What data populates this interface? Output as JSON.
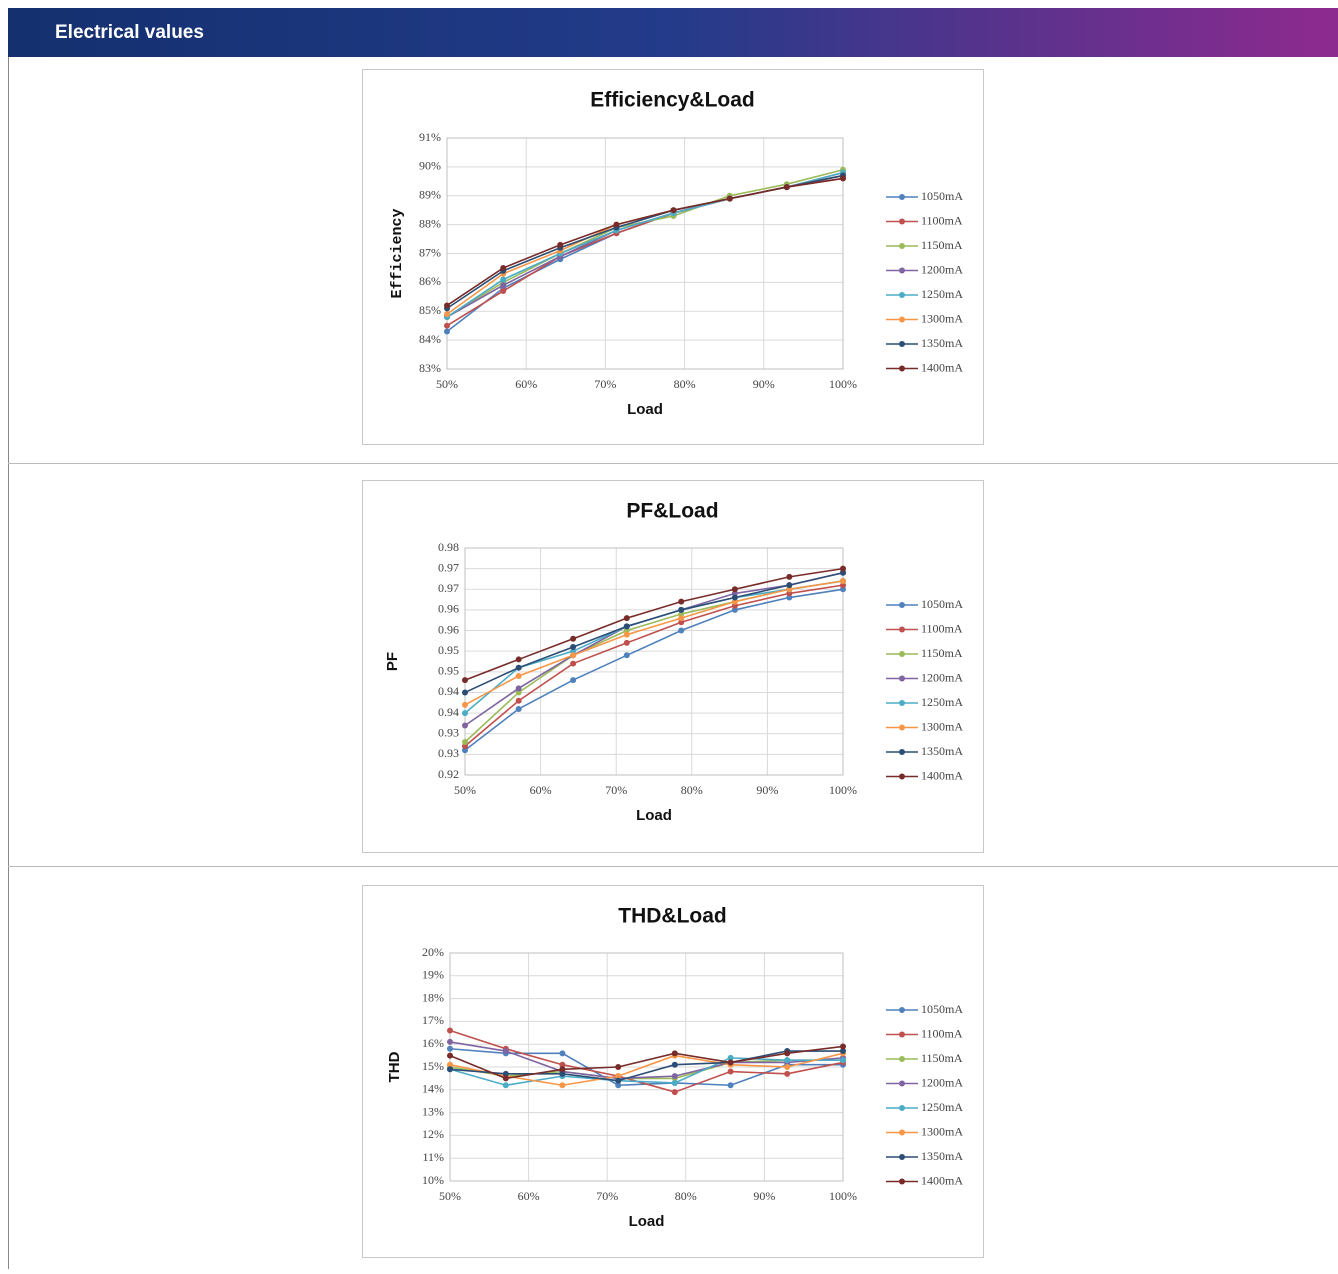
{
  "header": {
    "title": "Electrical values"
  },
  "chart_data": [
    {
      "type": "line",
      "title": "Efficiency&Load",
      "x_label": "Load",
      "y_label": "Efficiency",
      "grid": true,
      "x": [
        50,
        57.1,
        64.3,
        71.4,
        78.6,
        85.7,
        92.9,
        100
      ],
      "xlim": [
        50,
        100
      ],
      "xticks": [
        {
          "value": 50,
          "label": "50%"
        },
        {
          "value": 60,
          "label": "60%"
        },
        {
          "value": 70,
          "label": "70%"
        },
        {
          "value": 80,
          "label": "80%"
        },
        {
          "value": 90,
          "label": "90%"
        },
        {
          "value": 100,
          "label": "100%"
        }
      ],
      "ylim": [
        83,
        91
      ],
      "yticks": [
        {
          "value": 83,
          "label": "83%"
        },
        {
          "value": 84,
          "label": "84%"
        },
        {
          "value": 85,
          "label": "85%"
        },
        {
          "value": 86,
          "label": "86%"
        },
        {
          "value": 87,
          "label": "87%"
        },
        {
          "value": 88,
          "label": "88%"
        },
        {
          "value": 89,
          "label": "89%"
        },
        {
          "value": 90,
          "label": "90%"
        },
        {
          "value": 91,
          "label": "91%"
        }
      ],
      "series": [
        {
          "name": "1050mA",
          "color": "#4f81bd",
          "values": [
            84.3,
            85.8,
            86.8,
            87.7,
            88.4,
            88.9,
            89.3,
            89.7
          ]
        },
        {
          "name": "1100mA",
          "color": "#c0504d",
          "values": [
            84.5,
            85.7,
            86.9,
            87.7,
            88.4,
            88.9,
            89.3,
            89.6
          ]
        },
        {
          "name": "1150mA",
          "color": "#9bbb59",
          "values": [
            84.8,
            86.0,
            87.0,
            87.9,
            88.3,
            89.0,
            89.4,
            89.9
          ]
        },
        {
          "name": "1200mA",
          "color": "#8064a2",
          "values": [
            84.8,
            85.9,
            86.9,
            87.8,
            88.4,
            88.9,
            89.3,
            89.8
          ]
        },
        {
          "name": "1250mA",
          "color": "#4bacc6",
          "values": [
            84.8,
            86.1,
            87.0,
            87.8,
            88.4,
            88.9,
            89.3,
            89.8
          ]
        },
        {
          "name": "1300mA",
          "color": "#f79646",
          "values": [
            84.9,
            86.3,
            87.1,
            88.0,
            88.5,
            88.9,
            89.3,
            89.7
          ]
        },
        {
          "name": "1350mA",
          "color": "#2c4d75",
          "values": [
            85.1,
            86.4,
            87.2,
            87.9,
            88.5,
            88.9,
            89.3,
            89.7
          ]
        },
        {
          "name": "1400mA",
          "color": "#772c2a",
          "values": [
            85.2,
            86.5,
            87.3,
            88.0,
            88.5,
            88.9,
            89.3,
            89.6
          ]
        }
      ]
    },
    {
      "type": "line",
      "title": "PF&Load",
      "x_label": "Load",
      "y_label": "PF",
      "grid": true,
      "x": [
        50,
        57.1,
        64.3,
        71.4,
        78.6,
        85.7,
        92.9,
        100
      ],
      "xlim": [
        50,
        100
      ],
      "xticks": [
        {
          "value": 50,
          "label": "50%"
        },
        {
          "value": 60,
          "label": "60%"
        },
        {
          "value": 70,
          "label": "70%"
        },
        {
          "value": 80,
          "label": "80%"
        },
        {
          "value": 90,
          "label": "90%"
        },
        {
          "value": 100,
          "label": "100%"
        }
      ],
      "ylim": [
        0.92,
        0.975
      ],
      "yticks": [
        0.92,
        {
          "value": 0.925,
          "label": "0.93"
        },
        0.93,
        {
          "value": 0.935,
          "label": "0.94"
        },
        0.94,
        {
          "value": 0.945,
          "label": "0.95"
        },
        0.95,
        {
          "value": 0.955,
          "label": "0.96"
        },
        0.96,
        {
          "value": 0.965,
          "label": "0.97"
        },
        0.97,
        {
          "value": 0.975,
          "label": "0.98"
        }
      ],
      "series": [
        {
          "name": "1050mA",
          "color": "#4f81bd",
          "values": [
            0.926,
            0.936,
            0.943,
            0.949,
            0.955,
            0.96,
            0.963,
            0.965
          ]
        },
        {
          "name": "1100mA",
          "color": "#c0504d",
          "values": [
            0.927,
            0.938,
            0.947,
            0.952,
            0.957,
            0.961,
            0.964,
            0.966
          ]
        },
        {
          "name": "1150mA",
          "color": "#9bbb59",
          "values": [
            0.928,
            0.94,
            0.949,
            0.955,
            0.959,
            0.962,
            0.965,
            0.967
          ]
        },
        {
          "name": "1200mA",
          "color": "#8064a2",
          "values": [
            0.932,
            0.941,
            0.949,
            0.956,
            0.96,
            0.964,
            0.966,
            0.969
          ]
        },
        {
          "name": "1250mA",
          "color": "#4bacc6",
          "values": [
            0.935,
            0.946,
            0.95,
            0.956,
            0.96,
            0.963,
            0.965,
            0.967
          ]
        },
        {
          "name": "1300mA",
          "color": "#f79646",
          "values": [
            0.937,
            0.944,
            0.949,
            0.954,
            0.958,
            0.962,
            0.965,
            0.967
          ]
        },
        {
          "name": "1350mA",
          "color": "#2c4d75",
          "values": [
            0.94,
            0.946,
            0.951,
            0.956,
            0.96,
            0.963,
            0.966,
            0.969
          ]
        },
        {
          "name": "1400mA",
          "color": "#772c2a",
          "values": [
            0.943,
            0.948,
            0.953,
            0.958,
            0.962,
            0.965,
            0.968,
            0.97
          ]
        }
      ]
    },
    {
      "type": "line",
      "title": "THD&Load",
      "x_label": "Load",
      "y_label": "THD",
      "grid": true,
      "x": [
        50,
        57.1,
        64.3,
        71.4,
        78.6,
        85.7,
        92.9,
        100
      ],
      "xlim": [
        50,
        100
      ],
      "xticks": [
        {
          "value": 50,
          "label": "50%"
        },
        {
          "value": 60,
          "label": "60%"
        },
        {
          "value": 70,
          "label": "70%"
        },
        {
          "value": 80,
          "label": "80%"
        },
        {
          "value": 90,
          "label": "90%"
        },
        {
          "value": 100,
          "label": "100%"
        }
      ],
      "ylim": [
        10,
        20
      ],
      "yticks": [
        {
          "value": 10,
          "label": "10%"
        },
        {
          "value": 11,
          "label": "11%"
        },
        {
          "value": 12,
          "label": "12%"
        },
        {
          "value": 13,
          "label": "13%"
        },
        {
          "value": 14,
          "label": "14%"
        },
        {
          "value": 15,
          "label": "15%"
        },
        {
          "value": 16,
          "label": "16%"
        },
        {
          "value": 17,
          "label": "17%"
        },
        {
          "value": 18,
          "label": "18%"
        },
        {
          "value": 19,
          "label": "19%"
        },
        {
          "value": 20,
          "label": "20%"
        }
      ],
      "series": [
        {
          "name": "1050mA",
          "color": "#4f81bd",
          "values": [
            15.8,
            15.6,
            15.6,
            14.2,
            14.3,
            14.2,
            15.1,
            15.1
          ]
        },
        {
          "name": "1100mA",
          "color": "#c0504d",
          "values": [
            16.6,
            15.8,
            15.1,
            14.6,
            13.9,
            14.8,
            14.7,
            15.2
          ]
        },
        {
          "name": "1150mA",
          "color": "#9bbb59",
          "values": [
            15.0,
            14.6,
            14.8,
            14.5,
            14.5,
            15.2,
            15.3,
            15.3
          ]
        },
        {
          "name": "1200mA",
          "color": "#8064a2",
          "values": [
            16.1,
            15.7,
            14.8,
            14.5,
            14.6,
            15.2,
            15.2,
            15.4
          ]
        },
        {
          "name": "1250mA",
          "color": "#4bacc6",
          "values": [
            14.9,
            14.2,
            14.6,
            14.4,
            14.3,
            15.4,
            15.3,
            15.3
          ]
        },
        {
          "name": "1300mA",
          "color": "#f79646",
          "values": [
            15.1,
            14.6,
            14.2,
            14.6,
            15.5,
            15.1,
            15.0,
            15.6
          ]
        },
        {
          "name": "1350mA",
          "color": "#2c4d75",
          "values": [
            14.9,
            14.7,
            14.7,
            14.4,
            15.1,
            15.2,
            15.7,
            15.7
          ]
        },
        {
          "name": "1400mA",
          "color": "#772c2a",
          "values": [
            15.5,
            14.5,
            14.9,
            15.0,
            15.6,
            15.2,
            15.6,
            15.9
          ]
        }
      ]
    }
  ]
}
